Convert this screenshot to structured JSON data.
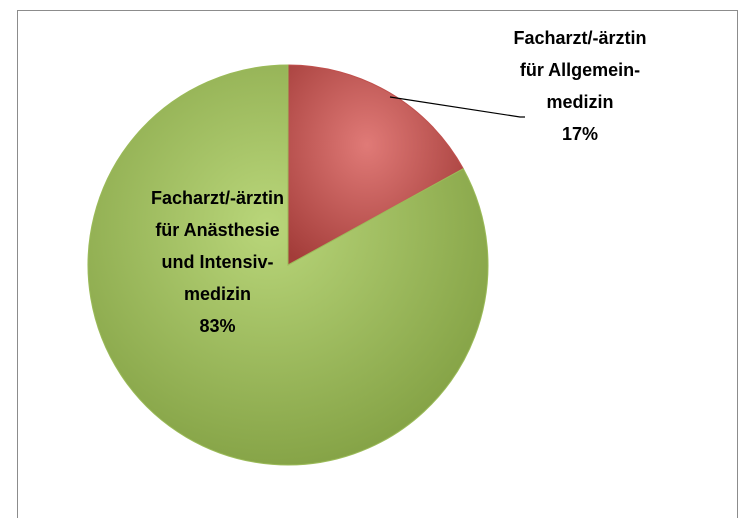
{
  "chart_data": {
    "type": "pie",
    "categories": [
      "Facharzt/-ärztin für Allgemein-medizin",
      "Facharzt/-ärztin für Anästhesie und Intensiv-medizin"
    ],
    "values": [
      17,
      83
    ],
    "value_labels": [
      "17%",
      "83%"
    ],
    "colors": [
      "#c0504d",
      "#9bbb59"
    ]
  }
}
